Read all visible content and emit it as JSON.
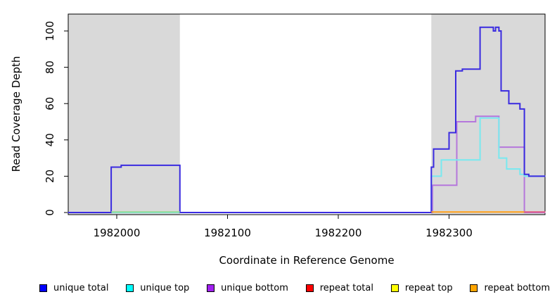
{
  "chart_data": {
    "type": "line",
    "subtype": "step-coverage",
    "title": "",
    "xlabel": "Coordinate in Reference Genome",
    "ylabel": "Read Coverage Depth",
    "xlim": [
      1981956,
      1982387
    ],
    "ylim": [
      0,
      108
    ],
    "x_ticks": [
      1982000,
      1982100,
      1982200,
      1982300
    ],
    "y_ticks": [
      0,
      20,
      40,
      60,
      80,
      100
    ],
    "grid": false,
    "plot_bg": "#ffffff",
    "masked_region_color": "#d9d9d9",
    "masked_regions": [
      {
        "x0": 1981956,
        "x1": 1982057
      },
      {
        "x0": 1982284,
        "x1": 1982387
      }
    ],
    "series": [
      {
        "name": "unique bottom",
        "color": "#b577dc",
        "points": [
          [
            1981956,
            0
          ],
          [
            1982285,
            0
          ],
          [
            1982285,
            15
          ],
          [
            1982307,
            15
          ],
          [
            1982307,
            50
          ],
          [
            1982324,
            50
          ],
          [
            1982324,
            53
          ],
          [
            1982345,
            53
          ],
          [
            1982345,
            36
          ],
          [
            1982368,
            36
          ],
          [
            1982368,
            0
          ],
          [
            1982387,
            0
          ]
        ]
      },
      {
        "name": "unique top",
        "color": "#78e9f0",
        "points": [
          [
            1981956,
            0
          ],
          [
            1982284,
            0
          ],
          [
            1982284,
            20
          ],
          [
            1982293,
            20
          ],
          [
            1982293,
            29
          ],
          [
            1982328,
            29
          ],
          [
            1982328,
            52
          ],
          [
            1982345,
            52
          ],
          [
            1982345,
            30
          ],
          [
            1982352,
            30
          ],
          [
            1982352,
            24
          ],
          [
            1982364,
            24
          ],
          [
            1982364,
            21
          ],
          [
            1982368,
            21
          ],
          [
            1982368,
            20
          ],
          [
            1982387,
            20
          ]
        ]
      },
      {
        "name": "unique total",
        "color": "#3a2be0",
        "points": [
          [
            1981956,
            0
          ],
          [
            1981995,
            0
          ],
          [
            1981995,
            25
          ],
          [
            1982004,
            25
          ],
          [
            1982004,
            26
          ],
          [
            1982057,
            26
          ],
          [
            1982057,
            0
          ],
          [
            1982284,
            0
          ],
          [
            1982284,
            25
          ],
          [
            1982286,
            25
          ],
          [
            1982286,
            35
          ],
          [
            1982300,
            35
          ],
          [
            1982300,
            44
          ],
          [
            1982306,
            44
          ],
          [
            1982306,
            78
          ],
          [
            1982312,
            78
          ],
          [
            1982312,
            79
          ],
          [
            1982328,
            79
          ],
          [
            1982328,
            102
          ],
          [
            1982340,
            102
          ],
          [
            1982340,
            100
          ],
          [
            1982342,
            100
          ],
          [
            1982342,
            102
          ],
          [
            1982345,
            102
          ],
          [
            1982345,
            100
          ],
          [
            1982347,
            100
          ],
          [
            1982347,
            67
          ],
          [
            1982354,
            67
          ],
          [
            1982354,
            60
          ],
          [
            1982364,
            60
          ],
          [
            1982364,
            57
          ],
          [
            1982368,
            57
          ],
          [
            1982368,
            21
          ],
          [
            1982372,
            21
          ],
          [
            1982372,
            20
          ],
          [
            1982387,
            20
          ]
        ]
      },
      {
        "name": "unique top-bottom overlap",
        "color": "#93db93",
        "points": [
          [
            1981995,
            0.3
          ],
          [
            1982057,
            0.3
          ]
        ]
      },
      {
        "name": "repeat bottom",
        "color": "#ffa018",
        "points": [
          [
            1982284,
            0.3
          ],
          [
            1982368,
            0.3
          ]
        ]
      },
      {
        "name": "repeat total",
        "color": "#e25983",
        "points": [
          [
            1982368,
            0.3
          ],
          [
            1982387,
            0.3
          ]
        ]
      }
    ],
    "legend": [
      {
        "label": "unique total",
        "color": "#0000FF"
      },
      {
        "label": "unique top",
        "color": "#00FFFF"
      },
      {
        "label": "unique bottom",
        "color": "#A020F0"
      },
      {
        "label": "repeat total",
        "color": "#FF0000"
      },
      {
        "label": "repeat top",
        "color": "#FFFF00"
      },
      {
        "label": "repeat bottom",
        "color": "#FFA500"
      }
    ],
    "legend_position": "bottom"
  }
}
